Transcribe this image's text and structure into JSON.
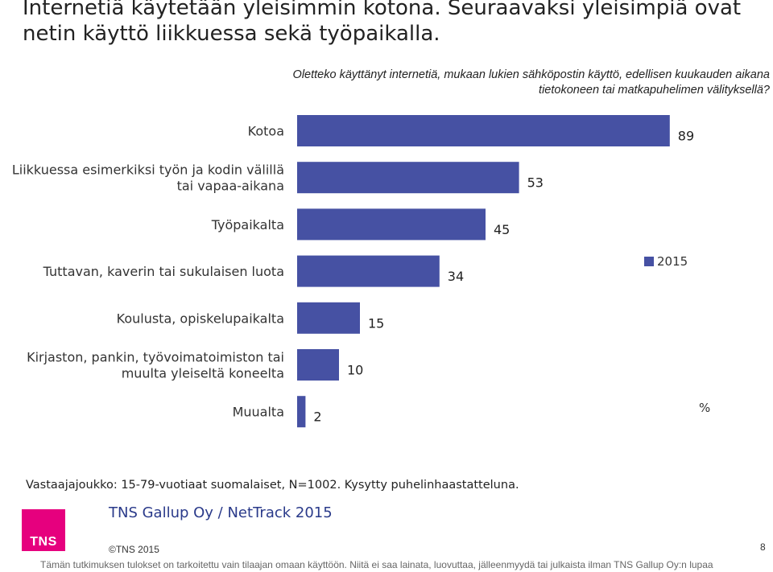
{
  "slide": {
    "title": "Internetiä käytetään yleisimmin kotona. Seuraavaksi yleisimpiä ovat netin käyttö liikkuessa sekä työpaikalla.",
    "question": "Oletteko käyttänyt internetiä, mukaan lukien sähköpostin käyttö, edellisen kuukauden aikana tietokoneen tai matkapuhelimen välityksellä?",
    "unit_label": "%",
    "base_note": "Vastaajajoukko: 15-79-vuotiaat suomalaiset, N=1002. Kysytty puhelinhaastatteluna.",
    "source": "TNS Gallup Oy / NetTrack 2015",
    "logo_text": "TNS",
    "copyright": "©TNS 2015",
    "page_number": "8",
    "disclaimer": "Tämän tutkimuksen tulokset on tarkoitettu vain tilaajan omaan käyttöön. Niitä ei saa lainata, luovuttaa, jälleenmyydä tai julkaista ilman TNS Gallup Oy:n lupaa",
    "colors": {
      "bar": "#4651a3",
      "logo": "#e6007e",
      "source_text": "#2a3a8a"
    },
    "icons": {
      "logo": "tns-logo-icon"
    }
  },
  "chart_data": {
    "type": "bar",
    "orientation": "horizontal",
    "categories": [
      "Kotoa",
      "Liikkuessa esimerkiksi työn ja kodin välillä tai vapaa-aikana",
      "Työpaikalta",
      "Tuttavan, kaverin tai sukulaisen luota",
      "Koulusta, opiskelupaikalta",
      "Kirjaston, pankin, työvoimatoimiston tai muulta yleiseltä koneelta",
      "Muualta"
    ],
    "series": [
      {
        "name": "2015",
        "values": [
          89,
          53,
          45,
          34,
          15,
          10,
          2
        ],
        "color": "#4651a3"
      }
    ],
    "xlim": [
      0,
      100
    ],
    "grid": false,
    "legend_position": "right"
  }
}
